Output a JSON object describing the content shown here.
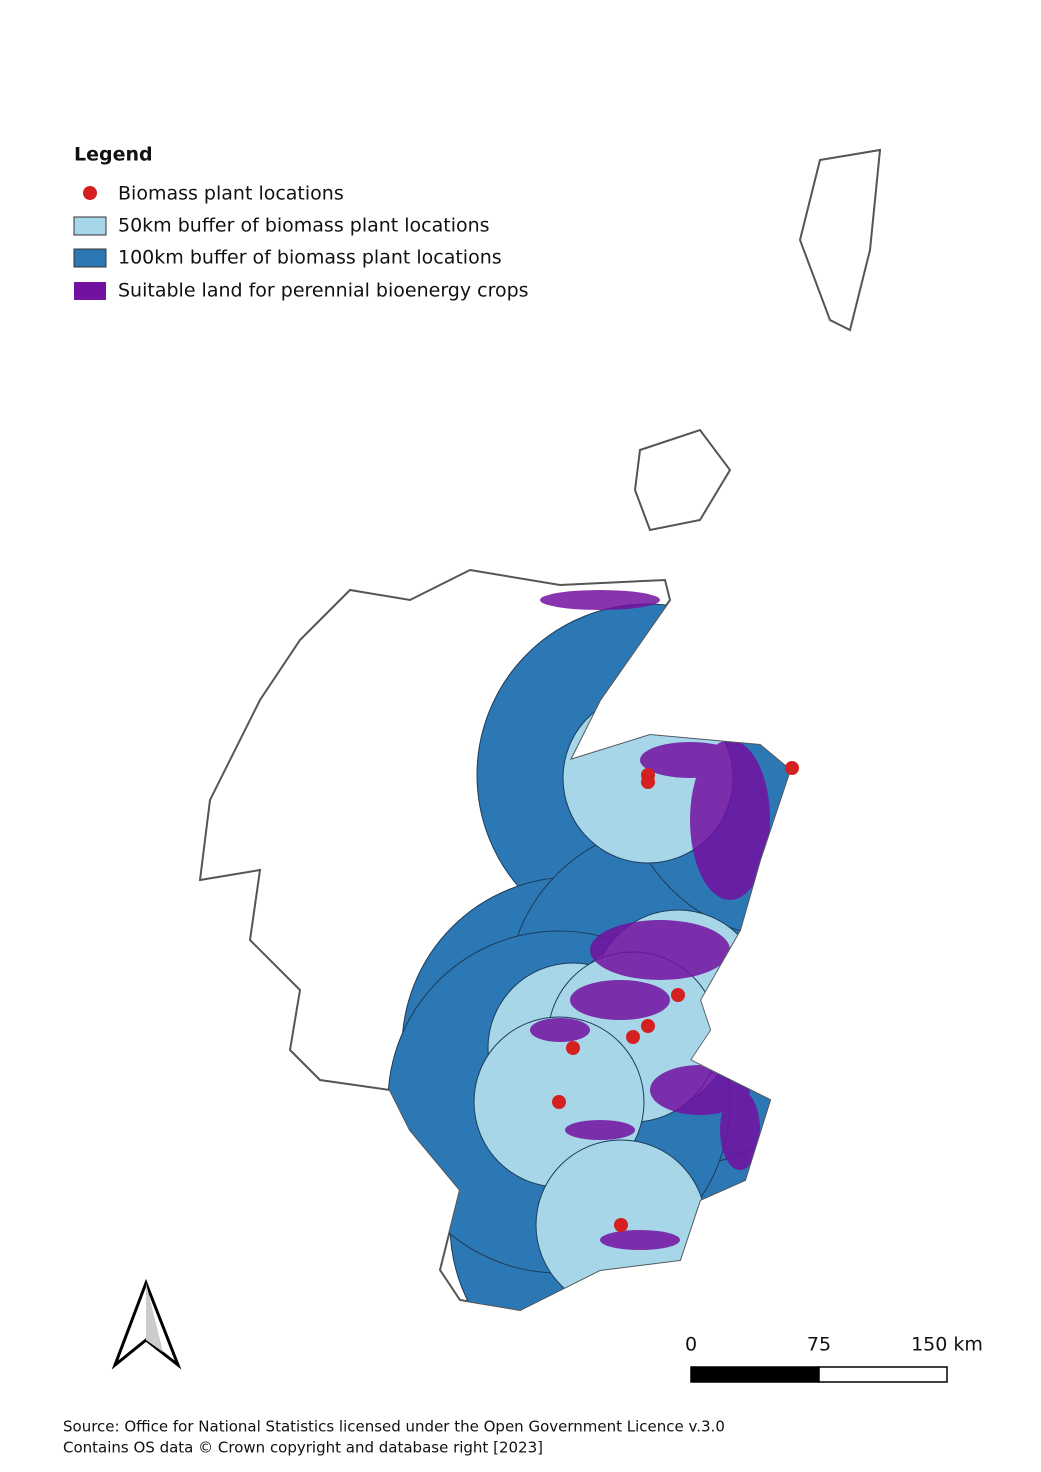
{
  "legend": {
    "title": "Legend",
    "items": [
      "Biomass plant locations",
      "50km buffer of biomass plant locations",
      "100km buffer of biomass plant locations",
      "Suitable land for perennial bioenergy crops"
    ]
  },
  "scale_bar": {
    "ticks": [
      0,
      75,
      {
        "value": 150,
        "label": "150 km"
      }
    ]
  },
  "source": [
    "Source: Office for National Statistics licensed under the Open Government Licence v.3.0",
    "Contains OS data © Crown copyright and database right [2023]"
  ]
}
